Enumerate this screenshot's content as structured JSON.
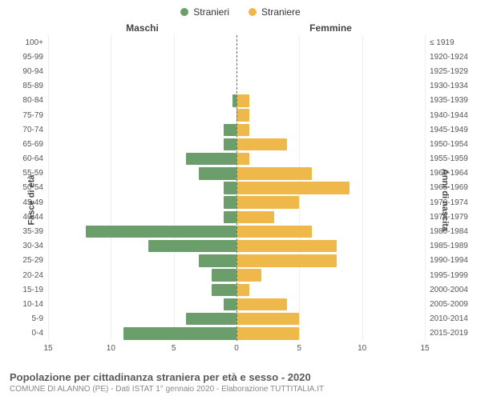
{
  "chart": {
    "type": "population-pyramid",
    "legend": {
      "male": {
        "label": "Stranieri",
        "color": "#6b9e6b"
      },
      "female": {
        "label": "Straniere",
        "color": "#eeb84b"
      }
    },
    "gender_titles": {
      "male": "Maschi",
      "female": "Femmine"
    },
    "y_axis_left_title": "Fasce di età",
    "y_axis_right_title": "Anni di nascita",
    "x_axis": {
      "max": 15,
      "ticks_left": [
        15,
        10,
        5,
        0
      ],
      "ticks_right": [
        5,
        10,
        15
      ]
    },
    "colors": {
      "background": "#ffffff",
      "grid": "#eeeeee",
      "center_line": "#666666",
      "text": "#555555"
    },
    "bar_gap_pct": 15,
    "rows": [
      {
        "age": "100+",
        "birth": "≤ 1919",
        "m": 0,
        "f": 0
      },
      {
        "age": "95-99",
        "birth": "1920-1924",
        "m": 0,
        "f": 0
      },
      {
        "age": "90-94",
        "birth": "1925-1929",
        "m": 0,
        "f": 0
      },
      {
        "age": "85-89",
        "birth": "1930-1934",
        "m": 0,
        "f": 0
      },
      {
        "age": "80-84",
        "birth": "1935-1939",
        "m": 0.3,
        "f": 1
      },
      {
        "age": "75-79",
        "birth": "1940-1944",
        "m": 0,
        "f": 1
      },
      {
        "age": "70-74",
        "birth": "1945-1949",
        "m": 1,
        "f": 1
      },
      {
        "age": "65-69",
        "birth": "1950-1954",
        "m": 1,
        "f": 4
      },
      {
        "age": "60-64",
        "birth": "1955-1959",
        "m": 4,
        "f": 1
      },
      {
        "age": "55-59",
        "birth": "1960-1964",
        "m": 3,
        "f": 6
      },
      {
        "age": "50-54",
        "birth": "1965-1969",
        "m": 1,
        "f": 9
      },
      {
        "age": "45-49",
        "birth": "1970-1974",
        "m": 1,
        "f": 5
      },
      {
        "age": "40-44",
        "birth": "1975-1979",
        "m": 1,
        "f": 3
      },
      {
        "age": "35-39",
        "birth": "1980-1984",
        "m": 12,
        "f": 6
      },
      {
        "age": "30-34",
        "birth": "1985-1989",
        "m": 7,
        "f": 8
      },
      {
        "age": "25-29",
        "birth": "1990-1994",
        "m": 3,
        "f": 8
      },
      {
        "age": "20-24",
        "birth": "1995-1999",
        "m": 2,
        "f": 2
      },
      {
        "age": "15-19",
        "birth": "2000-2004",
        "m": 2,
        "f": 1
      },
      {
        "age": "10-14",
        "birth": "2005-2009",
        "m": 1,
        "f": 4
      },
      {
        "age": "5-9",
        "birth": "2010-2014",
        "m": 4,
        "f": 5
      },
      {
        "age": "0-4",
        "birth": "2015-2019",
        "m": 9,
        "f": 5
      }
    ]
  },
  "footer": {
    "title": "Popolazione per cittadinanza straniera per età e sesso - 2020",
    "subtitle": "COMUNE DI ALANNO (PE) - Dati ISTAT 1° gennaio 2020 - Elaborazione TUTTITALIA.IT"
  }
}
